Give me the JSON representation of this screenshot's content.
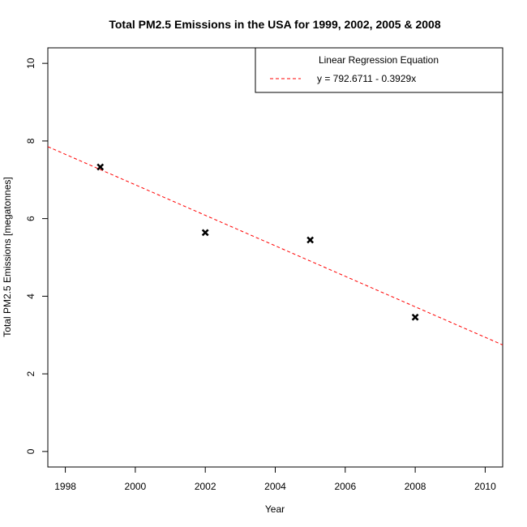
{
  "chart_data": {
    "type": "scatter",
    "title": "Total PM2.5 Emissions in the USA for 1999, 2002, 2005 & 2008",
    "xlabel": "Year",
    "ylabel": "Total PM2.5 Emissions [megatonnes]",
    "xlim": [
      1997.5,
      2010.5
    ],
    "ylim": [
      -0.4,
      10.4
    ],
    "x_ticks": [
      1998,
      2000,
      2002,
      2004,
      2006,
      2008,
      2010
    ],
    "y_ticks": [
      0,
      2,
      4,
      6,
      8,
      10
    ],
    "points": [
      {
        "x": 1999,
        "y": 7.33
      },
      {
        "x": 2002,
        "y": 5.64
      },
      {
        "x": 2005,
        "y": 5.45
      },
      {
        "x": 2008,
        "y": 3.46
      }
    ],
    "point_marker": "x",
    "point_color": "#000000",
    "regression": {
      "intercept": 792.6711,
      "slope": -0.3929,
      "color": "#ff0000",
      "style": "dashed"
    },
    "legend": {
      "position": "top-right",
      "title": "Linear Regression Equation",
      "entries": [
        {
          "label": "y = 792.6711 - 0.3929x",
          "color": "#ff0000",
          "style": "dashed"
        }
      ]
    },
    "grid": false
  }
}
